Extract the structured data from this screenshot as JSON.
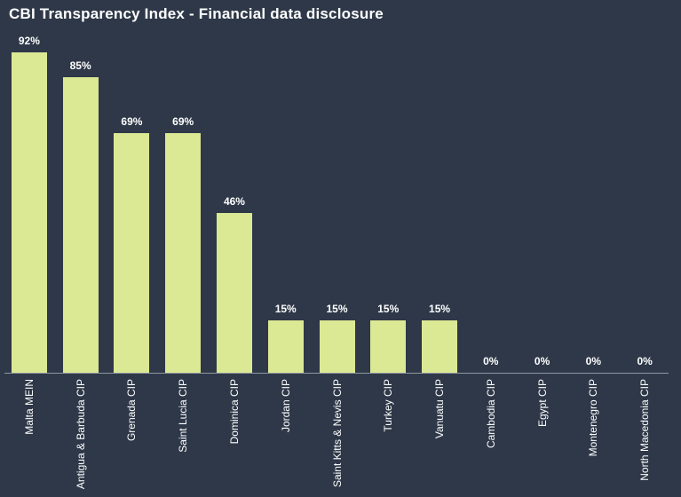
{
  "title": "CBI Transparency Index - Financial data disclosure",
  "chart_data": {
    "type": "bar",
    "title": "CBI Transparency Index - Financial data disclosure",
    "categories": [
      "Malta MEIN",
      "Antigua & Barbuda CIP",
      "Grenada CIP",
      "Saint Lucia CIP",
      "Dominica CIP",
      "Jordan CIP",
      "Saint Kitts & Nevis CIP",
      "Turkey CIP",
      "Vanuatu CIP",
      "Cambodia CIP",
      "Egypt CIP",
      "Montenegro CIP",
      "North Macedonia CIP"
    ],
    "values": [
      92,
      85,
      69,
      69,
      46,
      15,
      15,
      15,
      15,
      0,
      0,
      0,
      0
    ],
    "value_suffix": "%",
    "xlabel": "",
    "ylabel": "",
    "ylim": [
      0,
      100
    ],
    "grid": false,
    "legend": "none",
    "x_label_rotation": -90,
    "colors": {
      "background": "#2e3848",
      "bar": "#dbe894",
      "axis_line": "#8e96a0",
      "title_text": "#ffffff",
      "label_text": "#ffffff"
    }
  }
}
